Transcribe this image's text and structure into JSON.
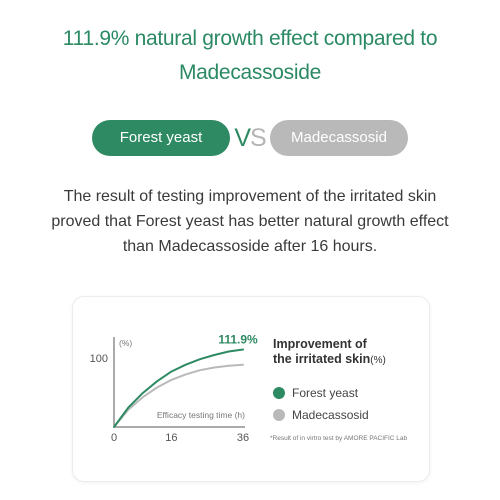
{
  "headline": {
    "line1": "111.9% natural growth effect compared to",
    "line2": "Madecassoside"
  },
  "comparison": {
    "left_label": "Forest yeast",
    "vs_v": "V",
    "vs_s": "S",
    "right_label": "Madecassosid"
  },
  "description": {
    "line1": "The result of testing improvement of the irritated skin",
    "line2": "proved that Forest yeast has better natural growth effect",
    "line3": "than Madecassoside after 16 hours."
  },
  "colors": {
    "brand_green": "#2e8a62",
    "gray": "#b9b9b9"
  },
  "chart_data": {
    "type": "line",
    "ylabel": "(%)",
    "xlabel": "Efficacy testing time (h)",
    "x_ticks": [
      0,
      16,
      36
    ],
    "y_ticks": [
      100
    ],
    "xlim": [
      0,
      36
    ],
    "ylim": [
      0,
      130
    ],
    "grid": false,
    "annotation": "111.9%",
    "legend_position": "right",
    "legend_title": "Improvement of",
    "legend_title_line2": "the irritated skin",
    "legend_unit": "(%)",
    "series": [
      {
        "name": "Forest yeast",
        "color": "#2e8a62",
        "x": [
          0,
          4,
          8,
          12,
          16,
          20,
          24,
          28,
          32,
          36
        ],
        "y": [
          0,
          28,
          49,
          66,
          80,
          90,
          98,
          104,
          109,
          112
        ]
      },
      {
        "name": "Madecassosid",
        "color": "#b9b9b9",
        "x": [
          0,
          4,
          8,
          12,
          16,
          20,
          24,
          28,
          32,
          36
        ],
        "y": [
          0,
          25,
          43,
          57,
          68,
          76,
          82,
          86,
          88.5,
          90
        ]
      }
    ],
    "footnote": "*Result of in virtro test by AMORE PACIFIC Lab"
  }
}
